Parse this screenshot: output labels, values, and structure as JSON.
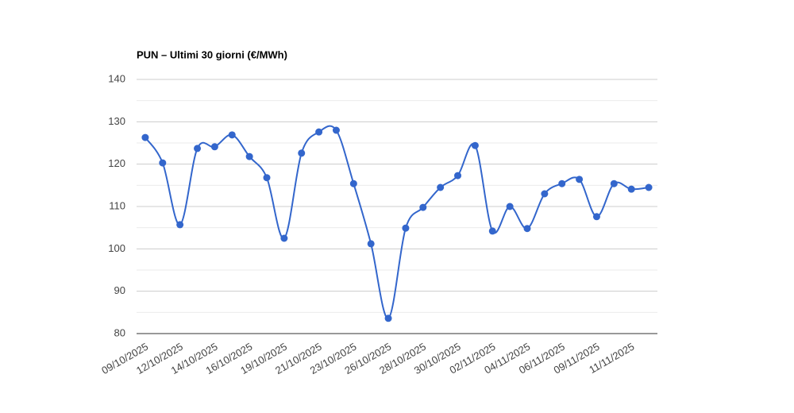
{
  "chart_data": {
    "type": "line",
    "title": "PUN – Ultimi 30 giorni (€/MWh)",
    "categories": [
      "09/10/2025",
      null,
      "12/10/2025",
      null,
      "14/10/2025",
      null,
      "16/10/2025",
      null,
      "19/10/2025",
      null,
      "21/10/2025",
      null,
      "23/10/2025",
      null,
      "26/10/2025",
      null,
      "28/10/2025",
      null,
      "30/10/2025",
      null,
      "02/11/2025",
      null,
      "04/11/2025",
      null,
      "06/11/2025",
      null,
      "09/11/2025",
      null,
      "11/11/2025",
      null
    ],
    "series": [
      {
        "color": "#3366cc",
        "values": [
          126.3,
          120.3,
          105.7,
          123.7,
          124.1,
          126.9,
          121.8,
          116.8,
          102.5,
          122.6,
          127.6,
          128.0,
          115.4,
          101.2,
          83.6,
          104.9,
          109.8,
          114.5,
          117.3,
          124.4,
          104.2,
          110.0,
          104.8,
          113.0,
          115.4,
          116.4,
          107.6,
          115.4,
          114.1,
          114.5
        ]
      }
    ],
    "ylim": [
      80,
      140
    ],
    "yticks": [
      80,
      90,
      100,
      110,
      120,
      130,
      140
    ],
    "grid": true,
    "minor_grid": true,
    "smooth": true
  }
}
